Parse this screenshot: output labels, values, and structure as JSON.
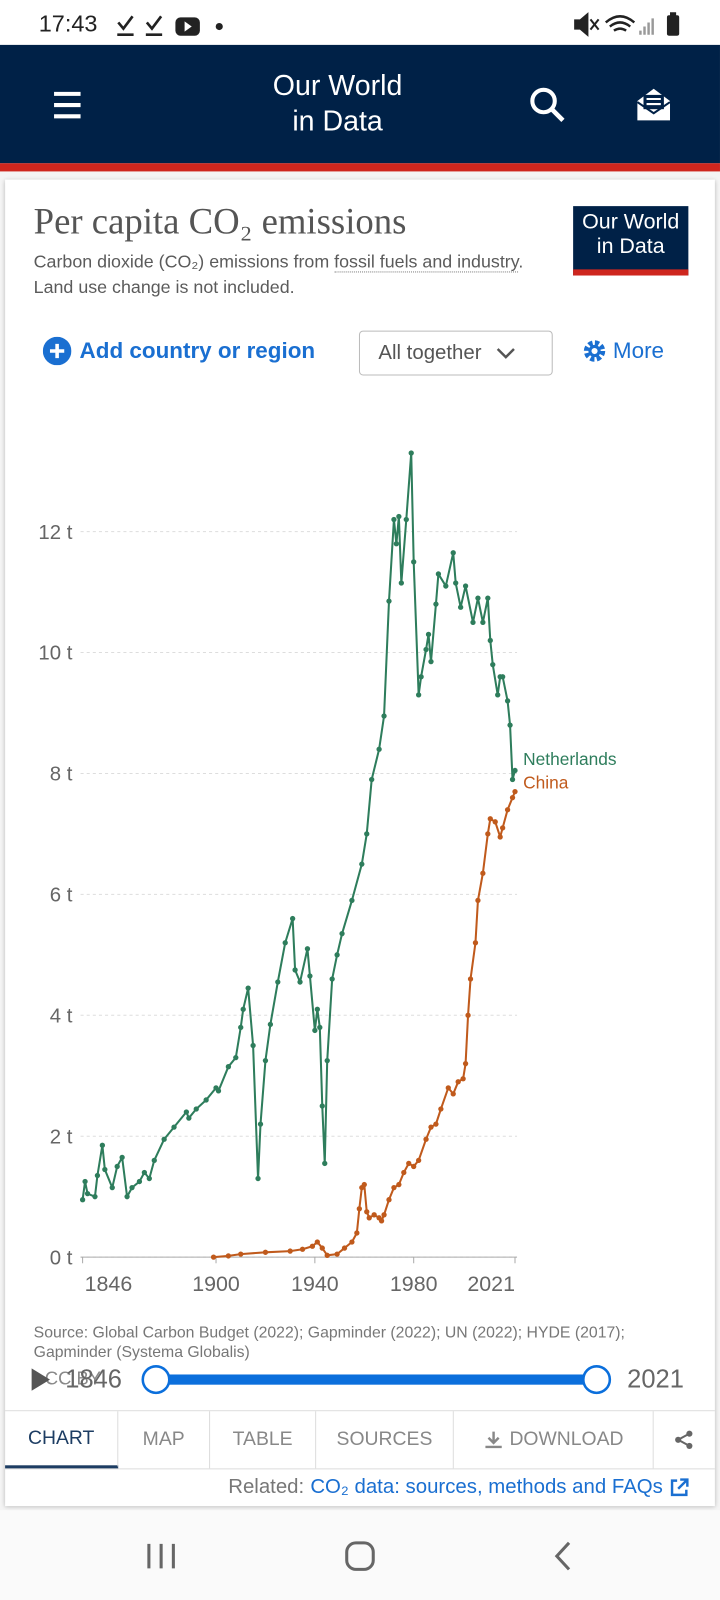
{
  "status_bar": {
    "time": "17:43"
  },
  "header": {
    "title_lines": [
      "Our World",
      "in Data"
    ]
  },
  "logo": {
    "lines": [
      "Our World",
      "in Data"
    ]
  },
  "controls": {
    "add": "Add country or region",
    "mode": "All together",
    "more": "More"
  },
  "chart_data": {
    "type": "line",
    "title": "Per capita CO₂ emissions",
    "subtitle_parts": [
      "Carbon dioxide (CO₂) emissions from ",
      "fossil fuels and industry",
      ". Land use change is not included."
    ],
    "series": [
      {
        "name": "Netherlands",
        "color": "#2e7d5c",
        "x": [
          1846,
          1847,
          1848,
          1851,
          1852,
          1854,
          1855,
          1858,
          1860,
          1862,
          1864,
          1866,
          1869,
          1871,
          1873,
          1875,
          1879,
          1883,
          1888,
          1889,
          1892,
          1896,
          1900,
          1901,
          1905,
          1908,
          1910,
          1911,
          1913,
          1915,
          1917,
          1918,
          1920,
          1922,
          1925,
          1928,
          1931,
          1932,
          1934,
          1937,
          1938,
          1940,
          1941,
          1942,
          1943,
          1944,
          1945,
          1947,
          1949,
          1951,
          1955,
          1959,
          1961,
          1963,
          1966,
          1968,
          1970,
          1972,
          1973,
          1974,
          1975,
          1977,
          1979,
          1980,
          1982,
          1983,
          1985,
          1986,
          1987,
          1989,
          1990,
          1993,
          1996,
          1997,
          1999,
          2001,
          2004,
          2006,
          2008,
          2010,
          2011,
          2012,
          2014,
          2015,
          2016,
          2018,
          2019,
          2020,
          2021
        ],
        "values": [
          0.95,
          1.25,
          1.05,
          1.0,
          1.35,
          1.85,
          1.45,
          1.15,
          1.5,
          1.65,
          1.0,
          1.15,
          1.25,
          1.4,
          1.3,
          1.6,
          1.95,
          2.15,
          2.4,
          2.3,
          2.45,
          2.6,
          2.8,
          2.75,
          3.15,
          3.3,
          3.8,
          4.1,
          4.45,
          3.5,
          1.3,
          2.2,
          3.25,
          3.85,
          4.55,
          5.2,
          5.6,
          4.75,
          4.55,
          5.1,
          4.65,
          3.75,
          4.1,
          3.8,
          2.5,
          1.55,
          3.25,
          4.6,
          5.0,
          5.35,
          5.9,
          6.5,
          7.0,
          7.9,
          8.4,
          8.95,
          10.85,
          12.2,
          11.8,
          12.25,
          11.15,
          12.2,
          13.3,
          11.5,
          9.3,
          9.6,
          10.05,
          10.3,
          9.85,
          10.8,
          11.3,
          11.1,
          11.65,
          11.15,
          10.75,
          11.1,
          10.5,
          10.9,
          10.5,
          10.9,
          10.2,
          9.8,
          9.3,
          9.6,
          9.6,
          9.2,
          8.8,
          7.9,
          8.05
        ]
      },
      {
        "name": "China",
        "color": "#c05a1c",
        "x": [
          1899,
          1905,
          1910,
          1920,
          1930,
          1935,
          1939,
          1941,
          1943,
          1945,
          1949,
          1952,
          1955,
          1957,
          1958,
          1959,
          1960,
          1961,
          1962,
          1964,
          1966,
          1967,
          1968,
          1970,
          1972,
          1974,
          1976,
          1978,
          1980,
          1982,
          1985,
          1987,
          1989,
          1991,
          1994,
          1996,
          1998,
          2000,
          2001,
          2002,
          2003,
          2005,
          2006,
          2008,
          2010,
          2011,
          2013,
          2015,
          2016,
          2018,
          2020,
          2021
        ],
        "values": [
          0.0,
          0.02,
          0.05,
          0.08,
          0.1,
          0.13,
          0.18,
          0.25,
          0.15,
          0.03,
          0.05,
          0.15,
          0.25,
          0.4,
          0.8,
          1.15,
          1.2,
          0.75,
          0.65,
          0.7,
          0.65,
          0.6,
          0.7,
          0.95,
          1.15,
          1.2,
          1.4,
          1.55,
          1.5,
          1.6,
          1.95,
          2.15,
          2.2,
          2.45,
          2.8,
          2.7,
          2.9,
          2.95,
          3.2,
          4.0,
          4.6,
          5.2,
          5.9,
          6.35,
          7.0,
          7.25,
          7.2,
          6.95,
          7.1,
          7.4,
          7.6,
          7.7
        ]
      }
    ],
    "xlim": [
      1846,
      2021
    ],
    "xticks": [
      1846,
      1900,
      1940,
      1980,
      2021
    ],
    "ylim": [
      0,
      14
    ],
    "yticks": [
      {
        "value": 0,
        "label": "0 t"
      },
      {
        "value": 2,
        "label": "2 t"
      },
      {
        "value": 4,
        "label": "4 t"
      },
      {
        "value": 6,
        "label": "6 t"
      },
      {
        "value": 8,
        "label": "8 t"
      },
      {
        "value": 10,
        "label": "10 t"
      },
      {
        "value": 12,
        "label": "12 t"
      }
    ],
    "grid": true,
    "source": "Source: Global Carbon Budget (2022); Gapminder (2022); UN (2022); HYDE (2017); Gapminder (Systema Globalis)"
  },
  "timeline": {
    "license": "CC BY",
    "start": 1846,
    "end": 2021
  },
  "tabs": [
    "CHART",
    "MAP",
    "TABLE",
    "SOURCES",
    "DOWNLOAD"
  ],
  "related": {
    "label": "Related:",
    "link": "CO₂ data: sources, methods and FAQs"
  }
}
